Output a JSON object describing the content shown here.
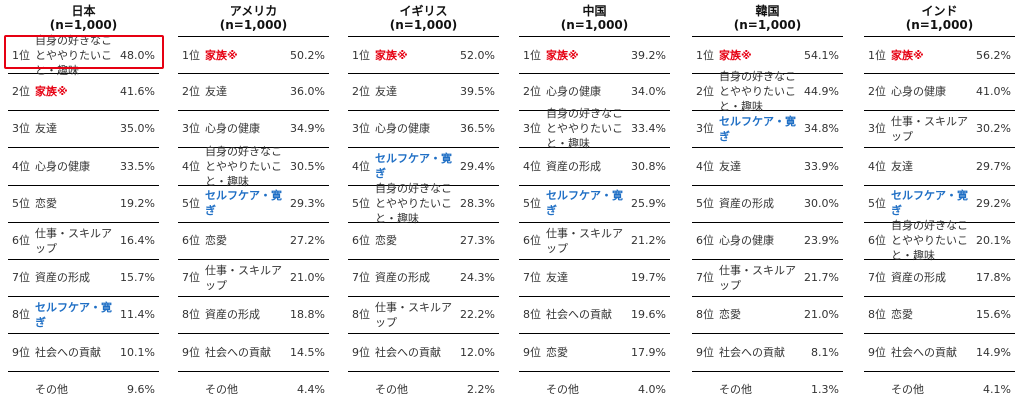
{
  "chart_data": {
    "type": "table",
    "columns": [
      {
        "country": "日本",
        "n": "(n=1,000)",
        "rows": [
          {
            "rank": "1位",
            "label": "自身の好きなことややりたいこと・趣味",
            "value": "48.0%",
            "color": "normal"
          },
          {
            "rank": "2位",
            "label": "家族※",
            "value": "41.6%",
            "color": "red"
          },
          {
            "rank": "3位",
            "label": "友達",
            "value": "35.0%",
            "color": "normal"
          },
          {
            "rank": "4位",
            "label": "心身の健康",
            "value": "33.5%",
            "color": "normal"
          },
          {
            "rank": "5位",
            "label": "恋愛",
            "value": "19.2%",
            "color": "normal"
          },
          {
            "rank": "6位",
            "label": "仕事・スキルアップ",
            "value": "16.4%",
            "color": "normal"
          },
          {
            "rank": "7位",
            "label": "資産の形成",
            "value": "15.7%",
            "color": "normal"
          },
          {
            "rank": "8位",
            "label": "セルフケア・寛ぎ",
            "value": "11.4%",
            "color": "blue"
          },
          {
            "rank": "9位",
            "label": "社会への貢献",
            "value": "10.1%",
            "color": "normal"
          },
          {
            "rank": "",
            "label": "その他",
            "value": "9.6%",
            "color": "normal"
          }
        ]
      },
      {
        "country": "アメリカ",
        "n": "(n=1,000)",
        "rows": [
          {
            "rank": "1位",
            "label": "家族※",
            "value": "50.2%",
            "color": "red"
          },
          {
            "rank": "2位",
            "label": "友達",
            "value": "36.0%",
            "color": "normal"
          },
          {
            "rank": "3位",
            "label": "心身の健康",
            "value": "34.9%",
            "color": "normal"
          },
          {
            "rank": "4位",
            "label": "自身の好きなことややりたいこと・趣味",
            "value": "30.5%",
            "color": "normal"
          },
          {
            "rank": "5位",
            "label": "セルフケア・寛ぎ",
            "value": "29.3%",
            "color": "blue"
          },
          {
            "rank": "6位",
            "label": "恋愛",
            "value": "27.2%",
            "color": "normal"
          },
          {
            "rank": "7位",
            "label": "仕事・スキルアップ",
            "value": "21.0%",
            "color": "normal"
          },
          {
            "rank": "8位",
            "label": "資産の形成",
            "value": "18.8%",
            "color": "normal"
          },
          {
            "rank": "9位",
            "label": "社会への貢献",
            "value": "14.5%",
            "color": "normal"
          },
          {
            "rank": "",
            "label": "その他",
            "value": "4.4%",
            "color": "normal"
          }
        ]
      },
      {
        "country": "イギリス",
        "n": "(n=1,000)",
        "rows": [
          {
            "rank": "1位",
            "label": "家族※",
            "value": "52.0%",
            "color": "red"
          },
          {
            "rank": "2位",
            "label": "友達",
            "value": "39.5%",
            "color": "normal"
          },
          {
            "rank": "3位",
            "label": "心身の健康",
            "value": "36.5%",
            "color": "normal"
          },
          {
            "rank": "4位",
            "label": "セルフケア・寛ぎ",
            "value": "29.4%",
            "color": "blue"
          },
          {
            "rank": "5位",
            "label": "自身の好きなことややりたいこと・趣味",
            "value": "28.3%",
            "color": "normal"
          },
          {
            "rank": "6位",
            "label": "恋愛",
            "value": "27.3%",
            "color": "normal"
          },
          {
            "rank": "7位",
            "label": "資産の形成",
            "value": "24.3%",
            "color": "normal"
          },
          {
            "rank": "8位",
            "label": "仕事・スキルアップ",
            "value": "22.2%",
            "color": "normal"
          },
          {
            "rank": "9位",
            "label": "社会への貢献",
            "value": "12.0%",
            "color": "normal"
          },
          {
            "rank": "",
            "label": "その他",
            "value": "2.2%",
            "color": "normal"
          }
        ]
      },
      {
        "country": "中国",
        "n": "(n=1,000)",
        "rows": [
          {
            "rank": "1位",
            "label": "家族※",
            "value": "39.2%",
            "color": "red"
          },
          {
            "rank": "2位",
            "label": "心身の健康",
            "value": "34.0%",
            "color": "normal"
          },
          {
            "rank": "3位",
            "label": "自身の好きなことややりたいこと・趣味",
            "value": "33.4%",
            "color": "normal"
          },
          {
            "rank": "4位",
            "label": "資産の形成",
            "value": "30.8%",
            "color": "normal"
          },
          {
            "rank": "5位",
            "label": "セルフケア・寛ぎ",
            "value": "25.9%",
            "color": "blue"
          },
          {
            "rank": "6位",
            "label": "仕事・スキルアップ",
            "value": "21.2%",
            "color": "normal"
          },
          {
            "rank": "7位",
            "label": "友達",
            "value": "19.7%",
            "color": "normal"
          },
          {
            "rank": "8位",
            "label": "社会への貢献",
            "value": "19.6%",
            "color": "normal"
          },
          {
            "rank": "9位",
            "label": "恋愛",
            "value": "17.9%",
            "color": "normal"
          },
          {
            "rank": "",
            "label": "その他",
            "value": "4.0%",
            "color": "normal"
          }
        ]
      },
      {
        "country": "韓国",
        "n": "(n=1,000)",
        "rows": [
          {
            "rank": "1位",
            "label": "家族※",
            "value": "54.1%",
            "color": "red"
          },
          {
            "rank": "2位",
            "label": "自身の好きなことややりたいこと・趣味",
            "value": "44.9%",
            "color": "normal"
          },
          {
            "rank": "3位",
            "label": "セルフケア・寛ぎ",
            "value": "34.8%",
            "color": "blue"
          },
          {
            "rank": "4位",
            "label": "友達",
            "value": "33.9%",
            "color": "normal"
          },
          {
            "rank": "5位",
            "label": "資産の形成",
            "value": "30.0%",
            "color": "normal"
          },
          {
            "rank": "6位",
            "label": "心身の健康",
            "value": "23.9%",
            "color": "normal"
          },
          {
            "rank": "7位",
            "label": "仕事・スキルアップ",
            "value": "21.7%",
            "color": "normal"
          },
          {
            "rank": "8位",
            "label": "恋愛",
            "value": "21.0%",
            "color": "normal"
          },
          {
            "rank": "9位",
            "label": "社会への貢献",
            "value": "8.1%",
            "color": "normal"
          },
          {
            "rank": "",
            "label": "その他",
            "value": "1.3%",
            "color": "normal"
          }
        ]
      },
      {
        "country": "インド",
        "n": "(n=1,000)",
        "rows": [
          {
            "rank": "1位",
            "label": "家族※",
            "value": "56.2%",
            "color": "red"
          },
          {
            "rank": "2位",
            "label": "心身の健康",
            "value": "41.0%",
            "color": "normal"
          },
          {
            "rank": "3位",
            "label": "仕事・スキルアップ",
            "value": "30.2%",
            "color": "normal"
          },
          {
            "rank": "4位",
            "label": "友達",
            "value": "29.7%",
            "color": "normal"
          },
          {
            "rank": "5位",
            "label": "セルフケア・寛ぎ",
            "value": "29.2%",
            "color": "blue"
          },
          {
            "rank": "6位",
            "label": "自身の好きなことややりたいこと・趣味",
            "value": "20.1%",
            "color": "normal"
          },
          {
            "rank": "7位",
            "label": "資産の形成",
            "value": "17.8%",
            "color": "normal"
          },
          {
            "rank": "8位",
            "label": "恋愛",
            "value": "15.6%",
            "color": "normal"
          },
          {
            "rank": "9位",
            "label": "社会への貢献",
            "value": "14.9%",
            "color": "normal"
          },
          {
            "rank": "",
            "label": "その他",
            "value": "4.1%",
            "color": "normal"
          }
        ]
      }
    ],
    "highlight": {
      "column": 0,
      "row": 0,
      "color": "#e60012"
    },
    "colors": {
      "red": "#e60012",
      "blue": "#1f6fc5"
    }
  }
}
